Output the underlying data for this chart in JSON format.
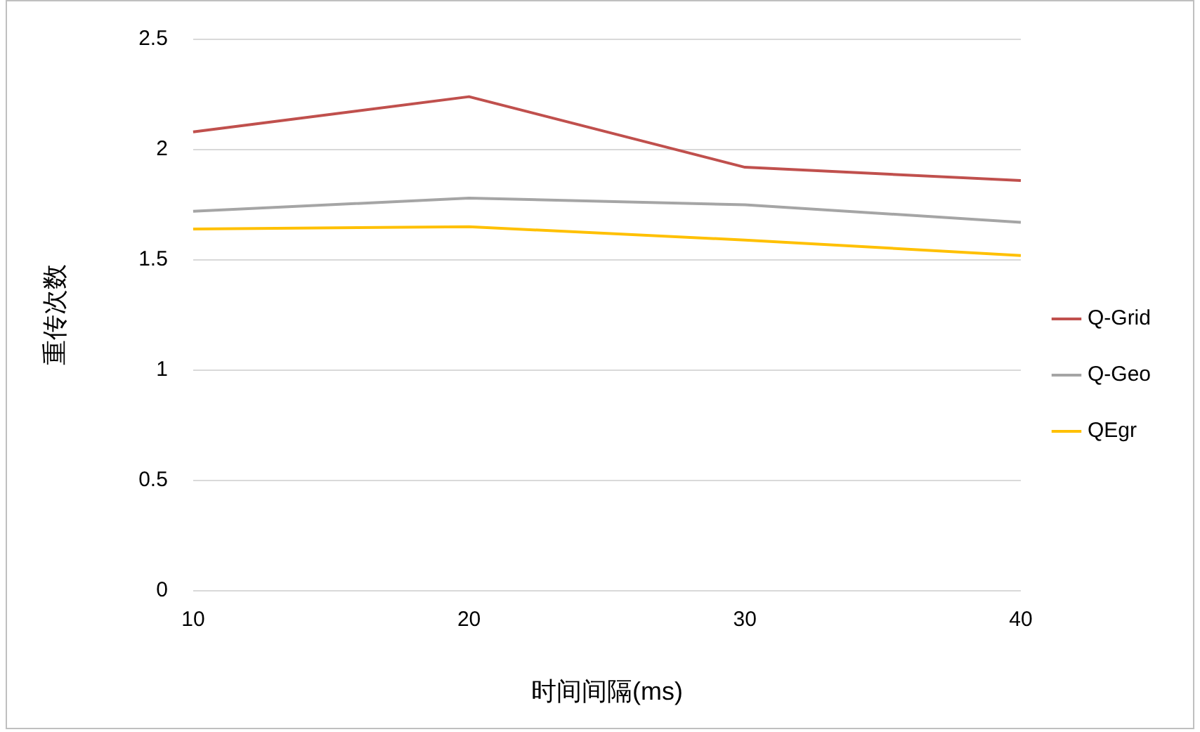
{
  "chart_data": {
    "type": "line",
    "xlabel": "时间间隔(ms)",
    "ylabel": "重传次数",
    "categories": [
      "10",
      "20",
      "30",
      "40"
    ],
    "series": [
      {
        "name": "Q-Grid",
        "color": "#c0504d",
        "values": [
          2.08,
          2.24,
          1.92,
          1.86
        ]
      },
      {
        "name": "Q-Geo",
        "color": "#a5a5a5",
        "values": [
          1.72,
          1.78,
          1.75,
          1.67
        ]
      },
      {
        "name": "QEgr",
        "color": "#ffc000",
        "values": [
          1.64,
          1.65,
          1.59,
          1.52
        ]
      }
    ],
    "ylim": [
      0,
      2.5
    ],
    "yticks": [
      0,
      0.5,
      1,
      1.5,
      2,
      2.5
    ],
    "grid": "y",
    "legend": "right",
    "marker": "none"
  }
}
